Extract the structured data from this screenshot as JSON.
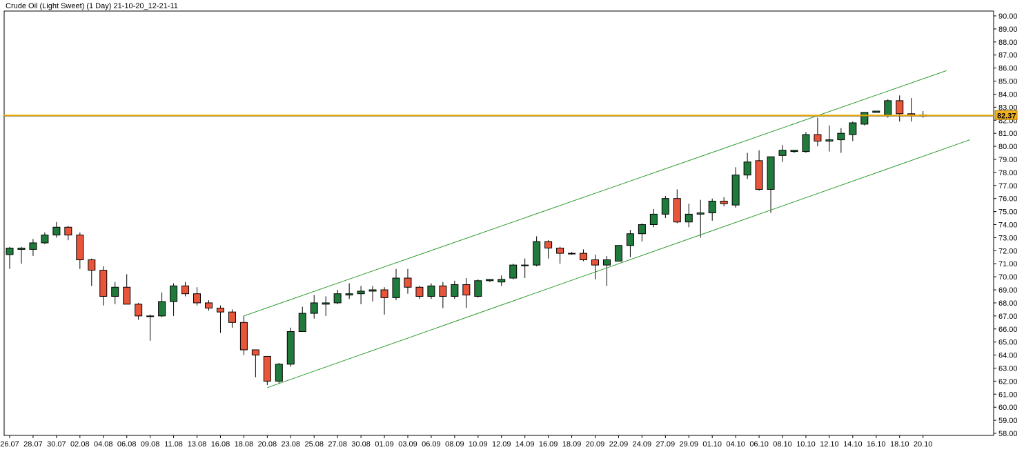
{
  "header": {
    "title": "Crude Oil (Light Sweet) (1 Day) 21-10-20_12-21-11"
  },
  "current_price": {
    "label": "82.37",
    "value": 82.37
  },
  "colors": {
    "up": "#1f7a3c",
    "down": "#e8553a",
    "wick": "#000000",
    "channel": "#2e9b2e",
    "price_line": "#e6a700",
    "price_badge": "#f3b21d",
    "frame": "#000000"
  },
  "chart_data": {
    "type": "candlestick",
    "title": "Crude Oil (Light Sweet) (1 Day) 21-10-20_12-21-11",
    "ylim": [
      58,
      90
    ],
    "y_ticks": [
      "90.00",
      "89.00",
      "88.00",
      "87.00",
      "86.00",
      "85.00",
      "84.00",
      "83.00",
      "82.00",
      "81.00",
      "80.00",
      "79.00",
      "78.00",
      "77.00",
      "76.00",
      "75.00",
      "74.00",
      "73.00",
      "72.00",
      "71.00",
      "70.00",
      "69.00",
      "68.00",
      "67.00",
      "66.00",
      "65.00",
      "64.00",
      "63.00",
      "62.00",
      "61.00",
      "60.00",
      "59.00",
      "58.00"
    ],
    "x_ticks": [
      {
        "label": "26.07",
        "index": 0
      },
      {
        "label": "28.07",
        "index": 2
      },
      {
        "label": "30.07",
        "index": 4
      },
      {
        "label": "02.08",
        "index": 6
      },
      {
        "label": "04.08",
        "index": 8
      },
      {
        "label": "06.08",
        "index": 10
      },
      {
        "label": "09.08",
        "index": 12
      },
      {
        "label": "11.08",
        "index": 14
      },
      {
        "label": "13.08",
        "index": 16
      },
      {
        "label": "16.08",
        "index": 18
      },
      {
        "label": "18.08",
        "index": 20
      },
      {
        "label": "20.08",
        "index": 22
      },
      {
        "label": "23.08",
        "index": 24
      },
      {
        "label": "25.08",
        "index": 26
      },
      {
        "label": "27.08",
        "index": 28
      },
      {
        "label": "30.08",
        "index": 30
      },
      {
        "label": "01.09",
        "index": 32
      },
      {
        "label": "03.09",
        "index": 34
      },
      {
        "label": "06.09",
        "index": 36
      },
      {
        "label": "08.09",
        "index": 38
      },
      {
        "label": "10.09",
        "index": 40
      },
      {
        "label": "12.09",
        "index": 42
      },
      {
        "label": "14.09",
        "index": 44
      },
      {
        "label": "16.09",
        "index": 46
      },
      {
        "label": "18.09",
        "index": 48
      },
      {
        "label": "20.09",
        "index": 50
      },
      {
        "label": "22.09",
        "index": 52
      },
      {
        "label": "24.09",
        "index": 54
      },
      {
        "label": "27.09",
        "index": 56
      },
      {
        "label": "29.09",
        "index": 58
      },
      {
        "label": "01.10",
        "index": 60
      },
      {
        "label": "04.10",
        "index": 62
      },
      {
        "label": "06.10",
        "index": 64
      },
      {
        "label": "08.10",
        "index": 66
      },
      {
        "label": "10.10",
        "index": 68
      },
      {
        "label": "12.10",
        "index": 70
      },
      {
        "label": "14.10",
        "index": 72
      },
      {
        "label": "16.10",
        "index": 74
      },
      {
        "label": "18.10",
        "index": 76
      },
      {
        "label": "20.10",
        "index": 78
      }
    ],
    "candles": [
      {
        "o": 71.7,
        "h": 72.3,
        "l": 70.6,
        "c": 72.2
      },
      {
        "o": 72.1,
        "h": 72.3,
        "l": 71.0,
        "c": 72.2
      },
      {
        "o": 72.1,
        "h": 72.9,
        "l": 71.6,
        "c": 72.6
      },
      {
        "o": 72.6,
        "h": 73.4,
        "l": 72.5,
        "c": 73.2
      },
      {
        "o": 73.2,
        "h": 74.2,
        "l": 73.0,
        "c": 73.8
      },
      {
        "o": 73.8,
        "h": 73.9,
        "l": 72.8,
        "c": 73.2
      },
      {
        "o": 73.2,
        "h": 73.4,
        "l": 70.6,
        "c": 71.3
      },
      {
        "o": 71.3,
        "h": 71.4,
        "l": 69.3,
        "c": 70.5
      },
      {
        "o": 70.5,
        "h": 70.8,
        "l": 67.8,
        "c": 68.5
      },
      {
        "o": 68.5,
        "h": 69.6,
        "l": 67.9,
        "c": 69.2
      },
      {
        "o": 69.2,
        "h": 70.2,
        "l": 67.9,
        "c": 67.9
      },
      {
        "o": 67.9,
        "h": 68.0,
        "l": 66.7,
        "c": 67.0
      },
      {
        "o": 67.0,
        "h": 67.1,
        "l": 65.1,
        "c": 67.0
      },
      {
        "o": 67.0,
        "h": 68.8,
        "l": 66.9,
        "c": 68.1
      },
      {
        "o": 68.1,
        "h": 69.5,
        "l": 67.0,
        "c": 69.3
      },
      {
        "o": 69.3,
        "h": 69.6,
        "l": 68.5,
        "c": 68.7
      },
      {
        "o": 68.7,
        "h": 69.2,
        "l": 67.8,
        "c": 68.0
      },
      {
        "o": 68.0,
        "h": 68.2,
        "l": 67.4,
        "c": 67.6
      },
      {
        "o": 67.6,
        "h": 67.8,
        "l": 65.7,
        "c": 67.3
      },
      {
        "o": 67.3,
        "h": 67.5,
        "l": 66.1,
        "c": 66.5
      },
      {
        "o": 66.5,
        "h": 67.0,
        "l": 64.0,
        "c": 64.4
      },
      {
        "o": 64.4,
        "h": 64.4,
        "l": 62.3,
        "c": 64.0
      },
      {
        "o": 63.9,
        "h": 63.9,
        "l": 61.7,
        "c": 62.0
      },
      {
        "o": 62.0,
        "h": 63.4,
        "l": 61.8,
        "c": 63.3
      },
      {
        "o": 63.3,
        "h": 66.1,
        "l": 63.1,
        "c": 65.8
      },
      {
        "o": 65.8,
        "h": 67.7,
        "l": 65.8,
        "c": 67.2
      },
      {
        "o": 67.2,
        "h": 68.6,
        "l": 66.8,
        "c": 68.0
      },
      {
        "o": 67.9,
        "h": 68.5,
        "l": 67.0,
        "c": 68.0
      },
      {
        "o": 68.0,
        "h": 69.0,
        "l": 67.9,
        "c": 68.7
      },
      {
        "o": 68.6,
        "h": 69.5,
        "l": 68.3,
        "c": 68.7
      },
      {
        "o": 68.7,
        "h": 69.3,
        "l": 67.9,
        "c": 68.9
      },
      {
        "o": 68.9,
        "h": 69.3,
        "l": 68.1,
        "c": 69.0
      },
      {
        "o": 69.0,
        "h": 69.2,
        "l": 67.1,
        "c": 68.4
      },
      {
        "o": 68.4,
        "h": 70.6,
        "l": 68.2,
        "c": 69.9
      },
      {
        "o": 69.9,
        "h": 70.6,
        "l": 68.7,
        "c": 69.2
      },
      {
        "o": 69.2,
        "h": 69.3,
        "l": 68.3,
        "c": 68.5
      },
      {
        "o": 68.5,
        "h": 69.5,
        "l": 68.3,
        "c": 69.3
      },
      {
        "o": 69.3,
        "h": 69.6,
        "l": 67.6,
        "c": 68.5
      },
      {
        "o": 68.5,
        "h": 69.7,
        "l": 68.3,
        "c": 69.4
      },
      {
        "o": 69.4,
        "h": 69.9,
        "l": 67.6,
        "c": 68.6
      },
      {
        "o": 68.5,
        "h": 69.8,
        "l": 68.4,
        "c": 69.7
      },
      {
        "o": 69.7,
        "h": 69.8,
        "l": 69.6,
        "c": 69.8
      },
      {
        "o": 69.6,
        "h": 70.1,
        "l": 69.3,
        "c": 69.8
      },
      {
        "o": 69.9,
        "h": 71.0,
        "l": 69.8,
        "c": 70.9
      },
      {
        "o": 70.9,
        "h": 71.4,
        "l": 69.9,
        "c": 70.9
      },
      {
        "o": 70.9,
        "h": 73.1,
        "l": 70.8,
        "c": 72.7
      },
      {
        "o": 72.7,
        "h": 72.8,
        "l": 71.4,
        "c": 72.2
      },
      {
        "o": 72.2,
        "h": 72.3,
        "l": 71.0,
        "c": 71.8
      },
      {
        "o": 71.8,
        "h": 71.9,
        "l": 71.7,
        "c": 71.8
      },
      {
        "o": 71.8,
        "h": 72.1,
        "l": 71.2,
        "c": 71.3
      },
      {
        "o": 71.3,
        "h": 71.7,
        "l": 69.8,
        "c": 70.9
      },
      {
        "o": 70.9,
        "h": 71.6,
        "l": 69.3,
        "c": 71.3
      },
      {
        "o": 71.2,
        "h": 72.4,
        "l": 71.2,
        "c": 72.4
      },
      {
        "o": 72.4,
        "h": 73.6,
        "l": 71.5,
        "c": 73.3
      },
      {
        "o": 73.3,
        "h": 74.1,
        "l": 72.7,
        "c": 74.0
      },
      {
        "o": 74.0,
        "h": 75.2,
        "l": 73.8,
        "c": 74.8
      },
      {
        "o": 74.8,
        "h": 76.2,
        "l": 74.5,
        "c": 76.0
      },
      {
        "o": 76.0,
        "h": 76.7,
        "l": 74.1,
        "c": 74.2
      },
      {
        "o": 74.2,
        "h": 75.6,
        "l": 73.8,
        "c": 74.8
      },
      {
        "o": 74.8,
        "h": 75.9,
        "l": 73.0,
        "c": 74.9
      },
      {
        "o": 74.9,
        "h": 76.0,
        "l": 74.3,
        "c": 75.8
      },
      {
        "o": 75.8,
        "h": 76.1,
        "l": 75.4,
        "c": 75.6
      },
      {
        "o": 75.5,
        "h": 78.4,
        "l": 75.3,
        "c": 77.8
      },
      {
        "o": 77.8,
        "h": 79.5,
        "l": 77.5,
        "c": 78.8
      },
      {
        "o": 78.9,
        "h": 79.7,
        "l": 76.6,
        "c": 76.7
      },
      {
        "o": 76.7,
        "h": 79.2,
        "l": 74.9,
        "c": 79.2
      },
      {
        "o": 79.3,
        "h": 80.1,
        "l": 78.8,
        "c": 79.7
      },
      {
        "o": 79.6,
        "h": 79.7,
        "l": 79.5,
        "c": 79.7
      },
      {
        "o": 79.6,
        "h": 81.1,
        "l": 79.5,
        "c": 80.9
      },
      {
        "o": 80.9,
        "h": 82.2,
        "l": 80.0,
        "c": 80.4
      },
      {
        "o": 80.4,
        "h": 81.6,
        "l": 79.6,
        "c": 80.5
      },
      {
        "o": 80.5,
        "h": 81.4,
        "l": 79.5,
        "c": 81.0
      },
      {
        "o": 80.9,
        "h": 81.9,
        "l": 80.4,
        "c": 81.8
      },
      {
        "o": 81.7,
        "h": 82.6,
        "l": 81.6,
        "c": 82.6
      },
      {
        "o": 82.6,
        "h": 82.7,
        "l": 82.6,
        "c": 82.7
      },
      {
        "o": 82.4,
        "h": 83.6,
        "l": 82.2,
        "c": 83.5
      },
      {
        "o": 83.5,
        "h": 83.9,
        "l": 81.9,
        "c": 82.5
      },
      {
        "o": 82.5,
        "h": 83.7,
        "l": 81.9,
        "c": 82.4
      },
      {
        "o": 82.4,
        "h": 82.7,
        "l": 82.2,
        "c": 82.4
      }
    ],
    "channel": {
      "upper": [
        {
          "x": 20,
          "y": 67.0
        },
        {
          "x": 80,
          "y": 85.8
        }
      ],
      "lower": [
        {
          "x": 22,
          "y": 61.5
        },
        {
          "x": 82,
          "y": 80.5
        }
      ]
    },
    "horizontal_line": 82.37,
    "grid": false
  }
}
